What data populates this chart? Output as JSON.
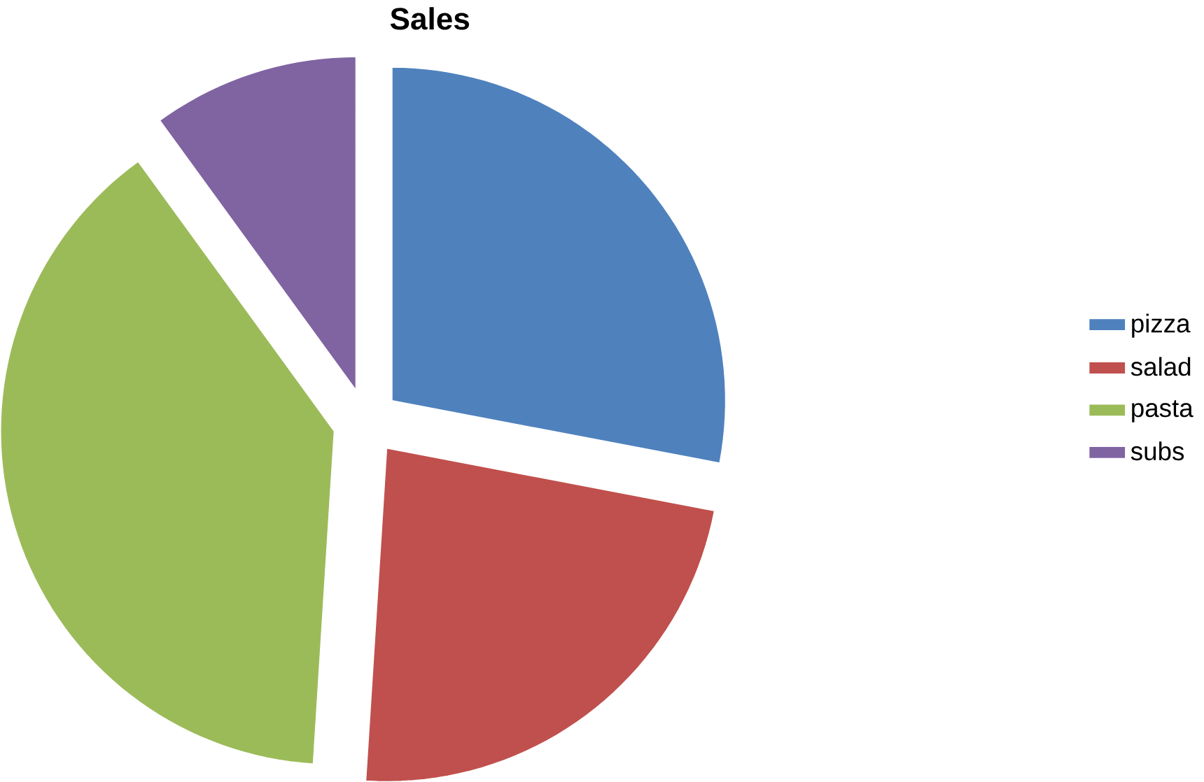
{
  "chart_data": {
    "type": "pie",
    "title": "Sales",
    "categories": [
      "pizza",
      "salad",
      "pasta",
      "subs"
    ],
    "values": [
      28,
      23,
      39,
      10
    ],
    "colors": [
      "#4f81bd",
      "#c0504d",
      "#9bbb59",
      "#8064a2"
    ],
    "legend": "right"
  }
}
